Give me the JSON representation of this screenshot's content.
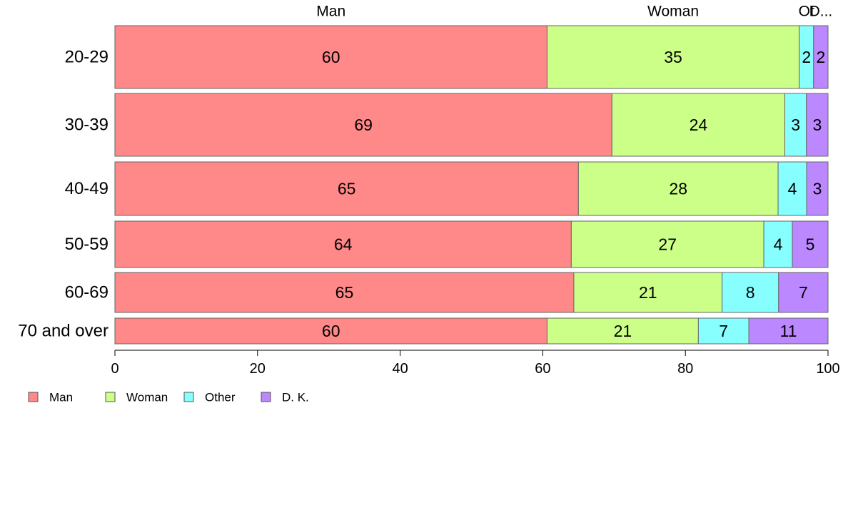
{
  "chart_data": {
    "type": "bar",
    "orientation": "horizontal",
    "stacked": true,
    "categories": [
      "20-29",
      "30-39",
      "40-49",
      "50-59",
      "60-69",
      "70 and over"
    ],
    "series": [
      {
        "name": "Man",
        "values": [
          60,
          69,
          65,
          64,
          65,
          60
        ],
        "color": "#ff8888"
      },
      {
        "name": "Woman",
        "values": [
          35,
          24,
          28,
          27,
          21,
          21
        ],
        "color": "#ccff88"
      },
      {
        "name": "Other",
        "values": [
          2,
          3,
          4,
          4,
          8,
          7
        ],
        "color": "#88ffff"
      },
      {
        "name": "D. K.",
        "values": [
          2,
          3,
          3,
          5,
          7,
          11
        ],
        "color": "#bb88ff"
      }
    ],
    "top_labels": [
      "Man",
      "Woman",
      "Ot",
      "D..."
    ],
    "xlim": [
      0,
      100
    ],
    "xticks": [
      0,
      20,
      40,
      60,
      80,
      100
    ],
    "legend_position": "bottom-left",
    "grid": false
  }
}
